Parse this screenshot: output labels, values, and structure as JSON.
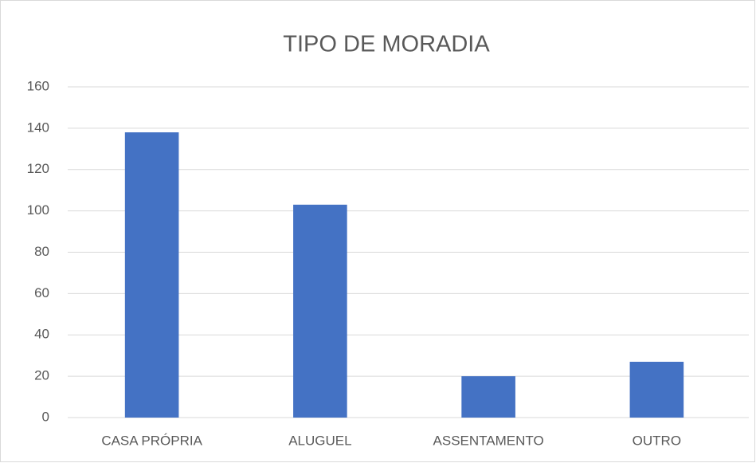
{
  "chart_data": {
    "type": "bar",
    "title": "TIPO DE MORADIA",
    "categories": [
      "CASA PRÓPRIA",
      "ALUGUEL",
      "ASSENTAMENTO",
      "OUTRO"
    ],
    "values": [
      138,
      103,
      20,
      27
    ],
    "color": "#4472c4",
    "ylim": [
      0,
      160
    ],
    "yticks": [
      0,
      20,
      40,
      60,
      80,
      100,
      120,
      140,
      160
    ],
    "grid": true
  }
}
